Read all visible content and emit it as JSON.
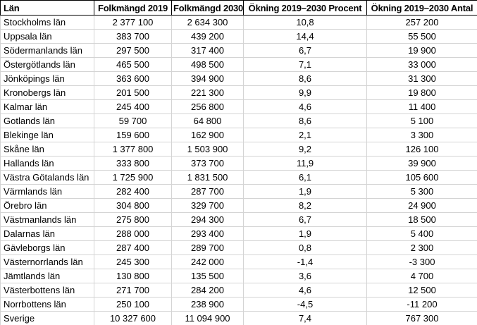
{
  "table": {
    "columns": [
      {
        "label": "Län"
      },
      {
        "label": "Folkmängd 2019"
      },
      {
        "label": "Folkmängd 2030"
      },
      {
        "label": "Ökning 2019–2030 Procent"
      },
      {
        "label": "Ökning 2019–2030 Antal"
      }
    ],
    "rows": [
      [
        "Stockholms län",
        "2 377 100",
        "2 634 300",
        "10,8",
        "257 200"
      ],
      [
        "Uppsala län",
        "383 700",
        "439 200",
        "14,4",
        "55 500"
      ],
      [
        "Södermanlands län",
        "297 500",
        "317 400",
        "6,7",
        "19 900"
      ],
      [
        "Östergötlands län",
        "465 500",
        "498 500",
        "7,1",
        "33 000"
      ],
      [
        "Jönköpings län",
        "363 600",
        "394 900",
        "8,6",
        "31 300"
      ],
      [
        "Kronobergs län",
        "201 500",
        "221 300",
        "9,9",
        "19 800"
      ],
      [
        "Kalmar län",
        "245 400",
        "256 800",
        "4,6",
        "11 400"
      ],
      [
        "Gotlands län",
        "59 700",
        "64 800",
        "8,6",
        "5 100"
      ],
      [
        "Blekinge län",
        "159 600",
        "162 900",
        "2,1",
        "3 300"
      ],
      [
        "Skåne län",
        "1 377 800",
        "1 503 900",
        "9,2",
        "126 100"
      ],
      [
        "Hallands län",
        "333 800",
        "373 700",
        "11,9",
        "39 900"
      ],
      [
        "Västra Götalands län",
        "1 725 900",
        "1 831 500",
        "6,1",
        "105 600"
      ],
      [
        "Värmlands län",
        "282 400",
        "287 700",
        "1,9",
        "5 300"
      ],
      [
        "Örebro län",
        "304 800",
        "329 700",
        "8,2",
        "24 900"
      ],
      [
        "Västmanlands län",
        "275 800",
        "294 300",
        "6,7",
        "18 500"
      ],
      [
        "Dalarnas län",
        "288 000",
        "293 400",
        "1,9",
        "5 400"
      ],
      [
        "Gävleborgs län",
        "287 400",
        "289 700",
        "0,8",
        "2 300"
      ],
      [
        "Västernorrlands län",
        "245 300",
        "242 000",
        "-1,4",
        "-3 300"
      ],
      [
        "Jämtlands län",
        "130 800",
        "135 500",
        "3,6",
        "4 700"
      ],
      [
        "Västerbottens län",
        "271 700",
        "284 200",
        "4,6",
        "12 500"
      ],
      [
        "Norrbottens län",
        "250 100",
        "238 900",
        "-4,5",
        "-11 200"
      ],
      [
        "Sverige",
        "10 327 600",
        "11 094 900",
        "7,4",
        "767 300"
      ]
    ]
  },
  "colors": {
    "background": "#ffffff",
    "text": "#000000",
    "header_border": "#000000",
    "grid_border": "#d4d4d4"
  }
}
